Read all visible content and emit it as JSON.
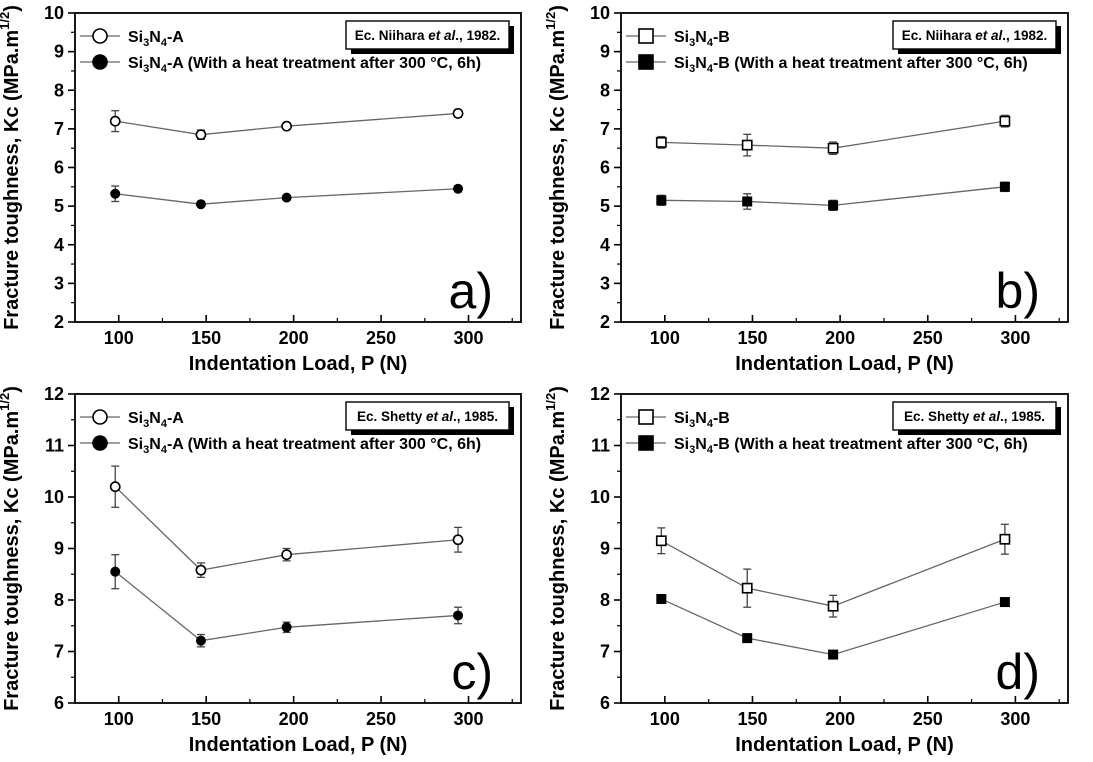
{
  "figure": {
    "description_colors": {
      "background": "#ffffff",
      "frame": "#000000",
      "series_line": "#666666",
      "error_bar": "#444444",
      "marker_stroke": "#000000",
      "marker_open_fill": "#ffffff",
      "marker_filled_fill": "#000000",
      "text": "#000000"
    }
  },
  "chart_data": [
    {
      "id": "a",
      "type": "line",
      "panel_label": "a)",
      "reference_box": {
        "prefix": "Ec. Niihara ",
        "italic": "et al",
        "suffix": "., 1982."
      },
      "xlabel": "Indentation Load, P (N)",
      "ylabel": "Fracture toughness, Kc (MPa.m^{1/2})",
      "xlim": [
        75,
        330
      ],
      "ylim": [
        2,
        10
      ],
      "x_major_ticks": [
        100,
        150,
        200,
        250,
        300
      ],
      "x_minor_ticks": [
        125,
        175,
        225,
        275,
        325
      ],
      "y_major_step": 1,
      "y_minor_step": 0.5,
      "x": [
        98,
        147,
        196,
        294
      ],
      "series": [
        {
          "name": "Si_{3}N_{4}-A",
          "marker": "circle",
          "fill": "open",
          "values": [
            7.2,
            6.85,
            7.07,
            7.4
          ],
          "yerr": [
            0.27,
            0.12,
            0.05,
            0.1
          ]
        },
        {
          "name": "Si_{3}N_{4}-A (With a heat treatment after 300 °C, 6h)",
          "marker": "circle",
          "fill": "filled",
          "values": [
            5.32,
            5.05,
            5.22,
            5.45
          ],
          "yerr": [
            0.2,
            0.05,
            0.05,
            0.08
          ]
        }
      ]
    },
    {
      "id": "b",
      "type": "line",
      "panel_label": "b)",
      "reference_box": {
        "prefix": "Ec. Niihara ",
        "italic": "et al",
        "suffix": "., 1982."
      },
      "xlabel": "Indentation Load, P (N)",
      "ylabel": "Fracture toughness, Kc (MPa.m^{1/2})",
      "xlim": [
        75,
        330
      ],
      "ylim": [
        2,
        10
      ],
      "x_major_ticks": [
        100,
        150,
        200,
        250,
        300
      ],
      "x_minor_ticks": [
        125,
        175,
        225,
        275,
        325
      ],
      "y_major_step": 1,
      "y_minor_step": 0.5,
      "x": [
        98,
        147,
        196,
        294
      ],
      "series": [
        {
          "name": "Si_{3}N_{4}-B",
          "marker": "square",
          "fill": "open",
          "values": [
            6.65,
            6.58,
            6.5,
            7.2
          ],
          "yerr": [
            0.15,
            0.28,
            0.16,
            0.15
          ]
        },
        {
          "name": "Si_{3}N_{4}-B (With a heat treatment after 300 °C, 6h)",
          "marker": "square",
          "fill": "filled",
          "values": [
            5.15,
            5.12,
            5.02,
            5.5
          ],
          "yerr": [
            0.13,
            0.2,
            0.13,
            0.12
          ]
        }
      ]
    },
    {
      "id": "c",
      "type": "line",
      "panel_label": "c)",
      "reference_box": {
        "prefix": "Ec. Shetty ",
        "italic": "et al",
        "suffix": "., 1985."
      },
      "xlabel": "Indentation Load, P (N)",
      "ylabel": "Fracture toughness, Kc (MPa.m^{1/2})",
      "xlim": [
        75,
        330
      ],
      "ylim": [
        6,
        12
      ],
      "x_major_ticks": [
        100,
        150,
        200,
        250,
        300
      ],
      "x_minor_ticks": [
        125,
        175,
        225,
        275,
        325
      ],
      "y_major_step": 1,
      "y_minor_step": 0.5,
      "x": [
        98,
        147,
        196,
        294
      ],
      "series": [
        {
          "name": "Si_{3}N_{4}-A",
          "marker": "circle",
          "fill": "open",
          "values": [
            10.2,
            8.58,
            8.88,
            9.17
          ],
          "yerr": [
            0.4,
            0.14,
            0.12,
            0.24
          ]
        },
        {
          "name": "Si_{3}N_{4}-A (With a heat treatment after 300 °C, 6h)",
          "marker": "circle",
          "fill": "filled",
          "values": [
            8.55,
            7.21,
            7.47,
            7.7
          ],
          "yerr": [
            0.33,
            0.12,
            0.1,
            0.16
          ]
        }
      ]
    },
    {
      "id": "d",
      "type": "line",
      "panel_label": "d)",
      "reference_box": {
        "prefix": "Ec. Shetty ",
        "italic": "et al",
        "suffix": "., 1985."
      },
      "xlabel": "Indentation Load, P (N)",
      "ylabel": "Fracture toughness, Kc (MPa.m^{1/2})",
      "xlim": [
        75,
        330
      ],
      "ylim": [
        6,
        12
      ],
      "x_major_ticks": [
        100,
        150,
        200,
        250,
        300
      ],
      "x_minor_ticks": [
        125,
        175,
        225,
        275,
        325
      ],
      "y_major_step": 1,
      "y_minor_step": 0.5,
      "x": [
        98,
        147,
        196,
        294
      ],
      "series": [
        {
          "name": "Si_{3}N_{4}-B",
          "marker": "square",
          "fill": "open",
          "values": [
            9.15,
            8.23,
            7.88,
            9.18
          ],
          "yerr": [
            0.25,
            0.37,
            0.21,
            0.29
          ]
        },
        {
          "name": "Si_{3}N_{4}-B (With a heat treatment after 300 °C, 6h)",
          "marker": "square",
          "fill": "filled",
          "values": [
            8.02,
            7.26,
            6.94,
            7.96
          ],
          "yerr": [
            0,
            0,
            0,
            0
          ]
        }
      ]
    }
  ]
}
